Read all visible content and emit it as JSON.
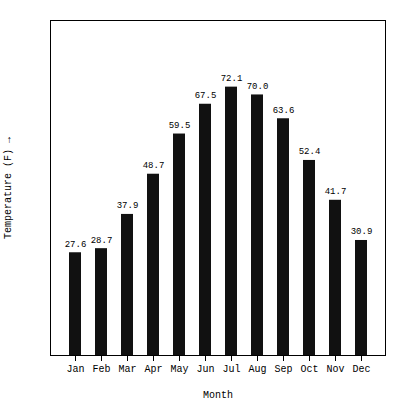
{
  "chart_data": {
    "type": "bar",
    "categories": [
      "Jan",
      "Feb",
      "Mar",
      "Apr",
      "May",
      "Jun",
      "Jul",
      "Aug",
      "Sep",
      "Oct",
      "Nov",
      "Dec"
    ],
    "values": [
      27.6,
      28.7,
      37.9,
      48.7,
      59.5,
      67.5,
      72.1,
      70.0,
      63.6,
      52.4,
      41.7,
      30.9
    ],
    "value_labels": [
      "27.6",
      "28.7",
      "37.9",
      "48.7",
      "59.5",
      "67.5",
      "72.1",
      "70.0",
      "63.6",
      "52.4",
      "41.7",
      "30.9"
    ],
    "color": "#111111",
    "xlabel": "Month",
    "ylabel": "Temperature (F)",
    "ylim": [
      0,
      90
    ],
    "grid": false,
    "data_labels": true,
    "tick_labels": "x"
  }
}
